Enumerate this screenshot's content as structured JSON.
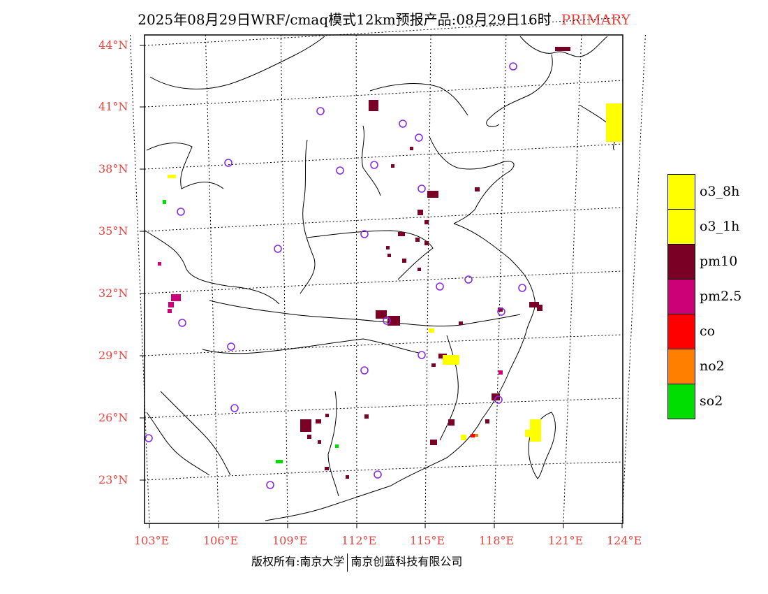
{
  "title": {
    "main": "2025年08月29日WRF/cmaq模式12km预报产品:08月29日16时",
    "tag": "PRIMARY",
    "tag_color": "#e8423f"
  },
  "axes": {
    "lat_labels": [
      "44°N",
      "41°N",
      "38°N",
      "35°N",
      "32°N",
      "29°N",
      "26°N",
      "23°N"
    ],
    "lon_labels": [
      "103°E",
      "106°E",
      "109°E",
      "112°E",
      "115°E",
      "118°E",
      "121°E",
      "124°E"
    ],
    "label_color": "#e8423f"
  },
  "legend": [
    {
      "label": "o3_8h",
      "color": "#ffff00"
    },
    {
      "label": "o3_1h",
      "color": "#ffff00"
    },
    {
      "label": "pm10",
      "color": "#7a0026"
    },
    {
      "label": "pm2.5",
      "color": "#cc0077"
    },
    {
      "label": "co",
      "color": "#ff0000"
    },
    {
      "label": "no2",
      "color": "#ff7f00"
    },
    {
      "label": "so2",
      "color": "#00dd00"
    }
  ],
  "station_marker_color": "#8a2be2",
  "copyright": {
    "left": "版权所有:南京大学",
    "right": "南京创蓝科技有限公司"
  }
}
